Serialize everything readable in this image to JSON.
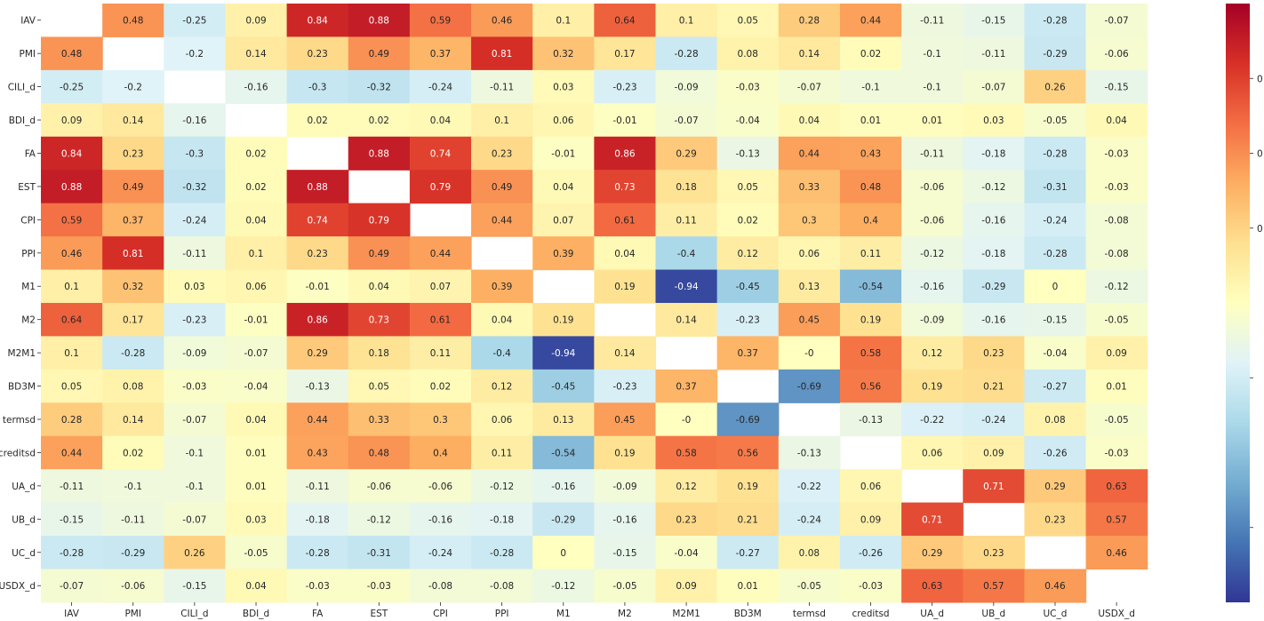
{
  "chart_data": {
    "type": "heatmap",
    "title": "",
    "xlabel": "",
    "ylabel": "",
    "variables": [
      "IAV",
      "PMI",
      "CILI_d",
      "BDI_d",
      "FA",
      "EST",
      "CPI",
      "PPI",
      "M1",
      "M2",
      "M2M1",
      "BD3M",
      "termsd",
      "creditsd",
      "UA_d",
      "UB_d",
      "UC_d",
      "USDX_d"
    ],
    "colormap": "RdYlBu_r",
    "vmin": -1,
    "vmax": 1,
    "colorbar_visible_tick_labels": [
      "0",
      "0",
      "0"
    ],
    "matrix": [
      [
        null,
        0.48,
        -0.25,
        0.09,
        0.84,
        0.88,
        0.59,
        0.46,
        0.1,
        0.64,
        0.1,
        0.05,
        0.28,
        0.44,
        -0.11,
        -0.15,
        -0.28,
        -0.07
      ],
      [
        0.48,
        null,
        -0.2,
        0.14,
        0.23,
        0.49,
        0.37,
        0.81,
        0.32,
        0.17,
        -0.28,
        0.08,
        0.14,
        0.02,
        -0.1,
        -0.11,
        -0.29,
        -0.06
      ],
      [
        -0.25,
        -0.2,
        null,
        -0.16,
        -0.3,
        -0.32,
        -0.24,
        -0.11,
        0.03,
        -0.23,
        -0.09,
        -0.03,
        -0.07,
        -0.1,
        -0.1,
        -0.07,
        0.26,
        -0.15
      ],
      [
        0.09,
        0.14,
        -0.16,
        null,
        0.02,
        0.02,
        0.04,
        0.1,
        0.06,
        -0.01,
        -0.07,
        -0.04,
        0.04,
        0.01,
        0.01,
        0.03,
        -0.05,
        0.04
      ],
      [
        0.84,
        0.23,
        -0.3,
        0.02,
        null,
        0.88,
        0.74,
        0.23,
        -0.01,
        0.86,
        0.29,
        -0.13,
        0.44,
        0.43,
        -0.11,
        -0.18,
        -0.28,
        -0.03
      ],
      [
        0.88,
        0.49,
        -0.32,
        0.02,
        0.88,
        null,
        0.79,
        0.49,
        0.04,
        0.73,
        0.18,
        0.05,
        0.33,
        0.48,
        -0.06,
        -0.12,
        -0.31,
        -0.03
      ],
      [
        0.59,
        0.37,
        -0.24,
        0.04,
        0.74,
        0.79,
        null,
        0.44,
        0.07,
        0.61,
        0.11,
        0.02,
        0.3,
        0.4,
        -0.06,
        -0.16,
        -0.24,
        -0.08
      ],
      [
        0.46,
        0.81,
        -0.11,
        0.1,
        0.23,
        0.49,
        0.44,
        null,
        0.39,
        0.04,
        -0.4,
        0.12,
        0.06,
        0.11,
        -0.12,
        -0.18,
        -0.28,
        -0.08
      ],
      [
        0.1,
        0.32,
        0.03,
        0.06,
        -0.01,
        0.04,
        0.07,
        0.39,
        null,
        0.19,
        -0.94,
        -0.45,
        0.13,
        -0.54,
        -0.16,
        -0.29,
        0,
        -0.12
      ],
      [
        0.64,
        0.17,
        -0.23,
        -0.01,
        0.86,
        0.73,
        0.61,
        0.04,
        0.19,
        null,
        0.14,
        -0.23,
        0.45,
        0.19,
        -0.09,
        -0.16,
        -0.15,
        -0.05
      ],
      [
        0.1,
        -0.28,
        -0.09,
        -0.07,
        0.29,
        0.18,
        0.11,
        -0.4,
        -0.94,
        0.14,
        null,
        0.37,
        "-0",
        0.58,
        0.12,
        0.23,
        -0.04,
        0.09
      ],
      [
        0.05,
        0.08,
        -0.03,
        -0.04,
        -0.13,
        0.05,
        0.02,
        0.12,
        -0.45,
        -0.23,
        0.37,
        null,
        -0.69,
        0.56,
        0.19,
        0.21,
        -0.27,
        0.01
      ],
      [
        0.28,
        0.14,
        -0.07,
        0.04,
        0.44,
        0.33,
        0.3,
        0.06,
        0.13,
        0.45,
        "-0",
        -0.69,
        null,
        -0.13,
        -0.22,
        -0.24,
        0.08,
        -0.05
      ],
      [
        0.44,
        0.02,
        -0.1,
        0.01,
        0.43,
        0.48,
        0.4,
        0.11,
        -0.54,
        0.19,
        0.58,
        0.56,
        -0.13,
        null,
        0.06,
        0.09,
        -0.26,
        -0.03
      ],
      [
        -0.11,
        -0.1,
        -0.1,
        0.01,
        -0.11,
        -0.06,
        -0.06,
        -0.12,
        -0.16,
        -0.09,
        0.12,
        0.19,
        -0.22,
        0.06,
        null,
        0.71,
        0.29,
        0.63
      ],
      [
        -0.15,
        -0.11,
        -0.07,
        0.03,
        -0.18,
        -0.12,
        -0.16,
        -0.18,
        -0.29,
        -0.16,
        0.23,
        0.21,
        -0.24,
        0.09,
        0.71,
        null,
        0.23,
        0.57
      ],
      [
        -0.28,
        -0.29,
        0.26,
        -0.05,
        -0.28,
        -0.31,
        -0.24,
        -0.28,
        0,
        -0.15,
        -0.04,
        -0.27,
        0.08,
        -0.26,
        0.29,
        0.23,
        null,
        0.46
      ],
      [
        -0.07,
        -0.06,
        -0.15,
        0.04,
        -0.03,
        -0.03,
        -0.08,
        -0.08,
        -0.12,
        -0.05,
        0.09,
        0.01,
        -0.05,
        -0.03,
        0.63,
        0.57,
        0.46,
        null
      ]
    ]
  }
}
